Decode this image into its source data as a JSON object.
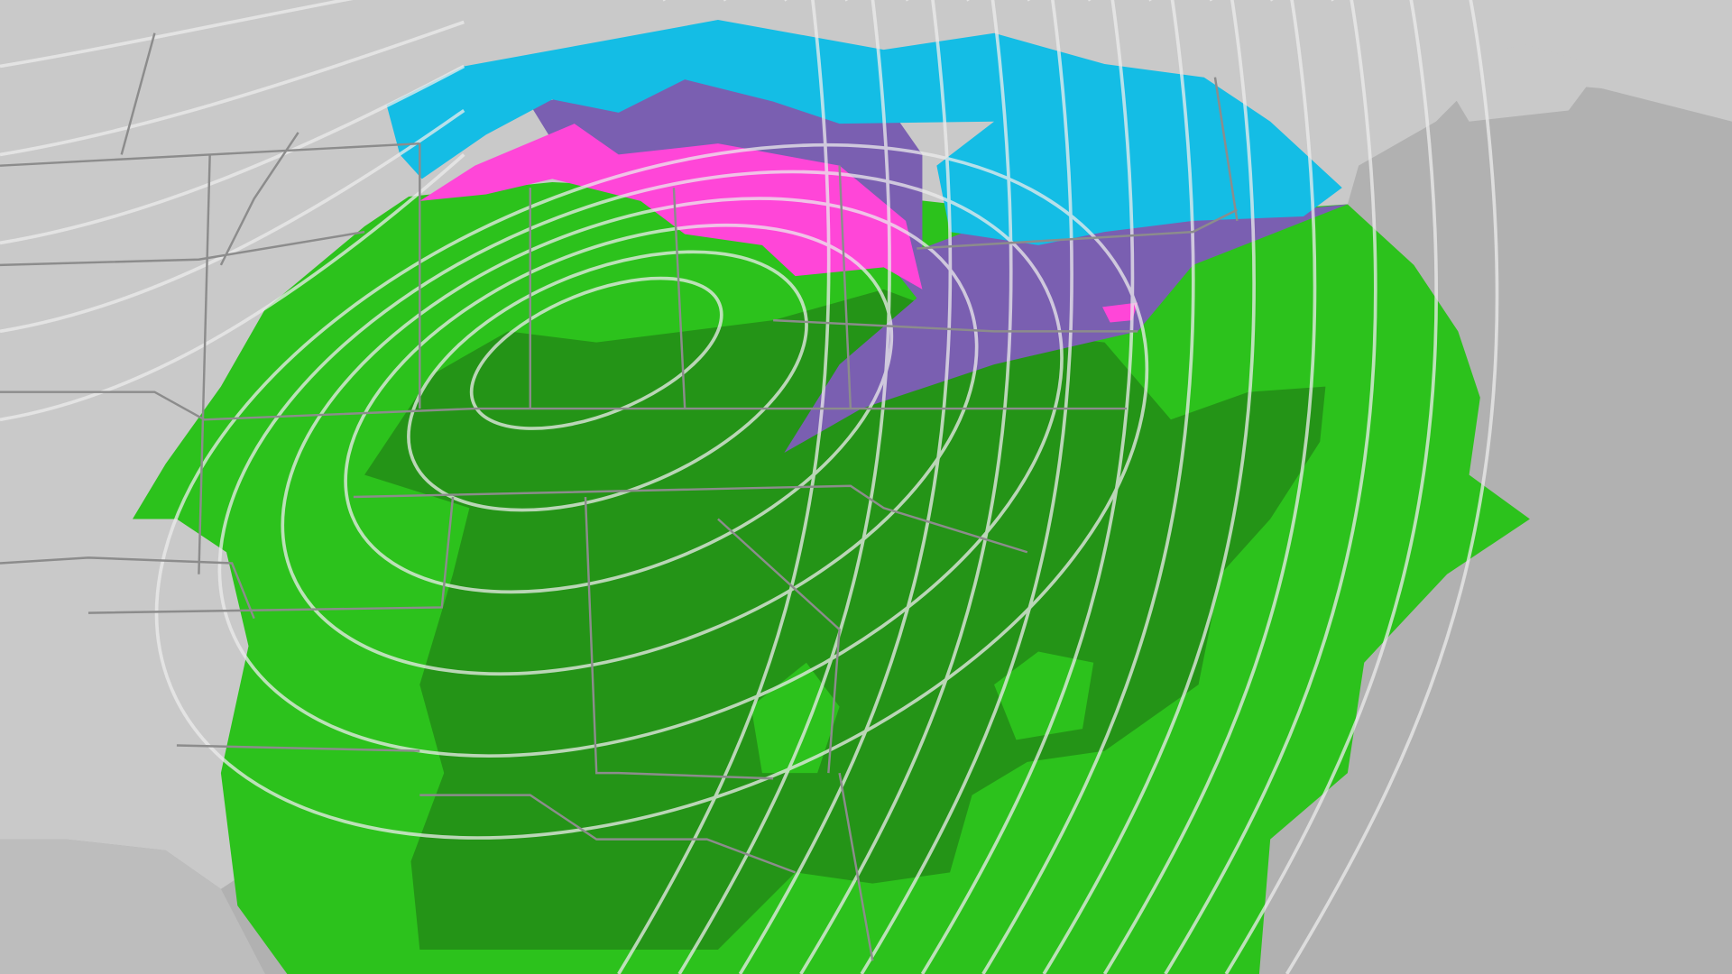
{
  "map": {
    "colors": {
      "ocean": "#b1b1b1",
      "land": "#c9c9c9",
      "rain_light": "#2cc21c",
      "rain_heavy": "#249417",
      "snow": "#14bde5",
      "mix": "#7a5fb1",
      "ice": "#ff46d8",
      "isobar": "#ececec",
      "borders": "#8c8c8c"
    },
    "layers": [
      "land",
      "rain-light",
      "rain-heavy",
      "mix",
      "ice",
      "snow",
      "isobars",
      "state-borders"
    ]
  }
}
